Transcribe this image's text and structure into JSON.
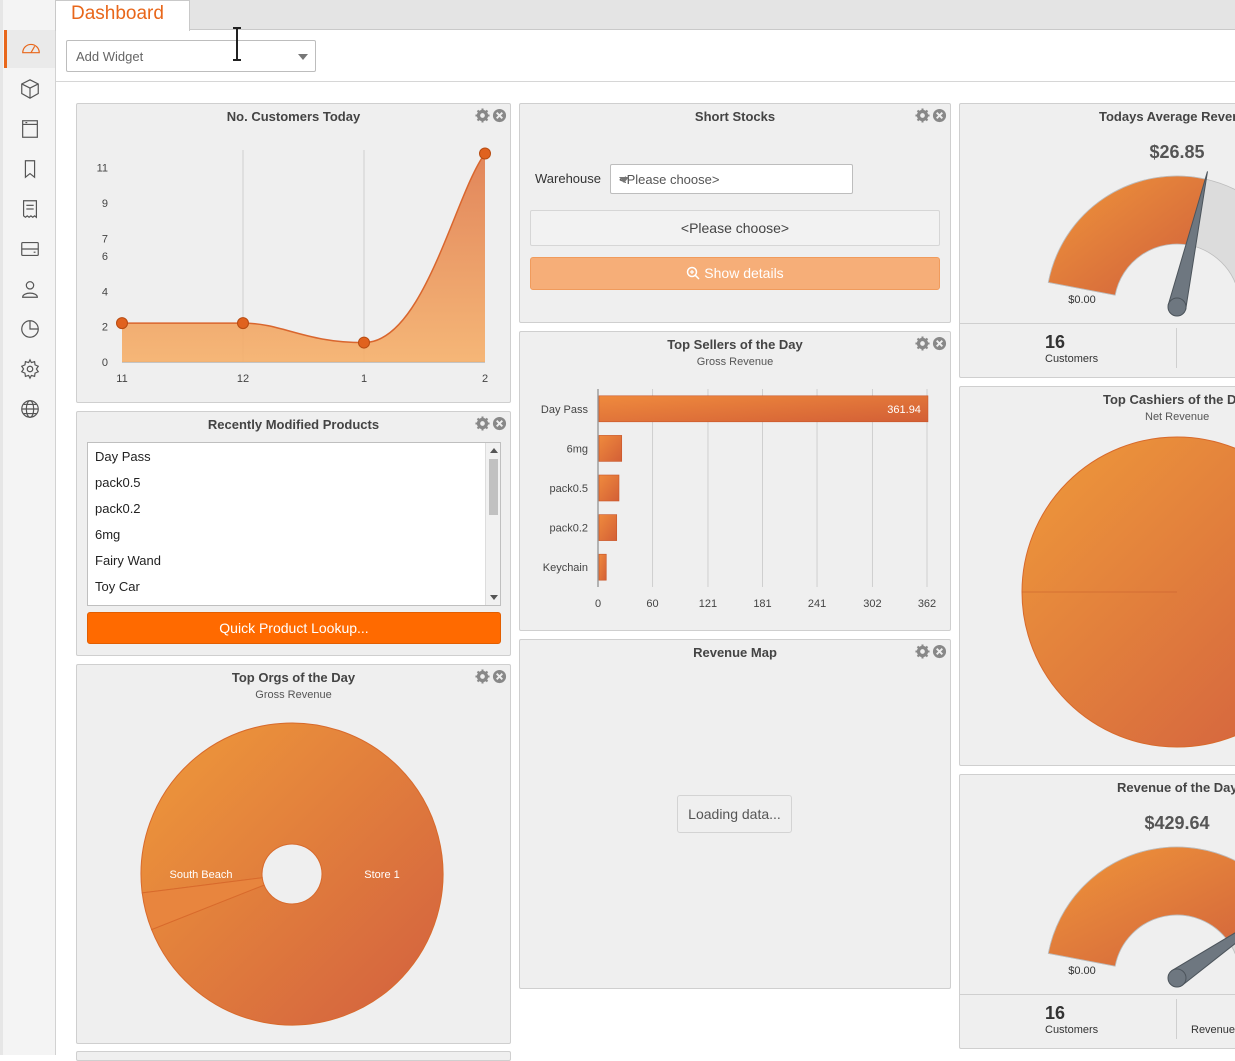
{
  "app": {
    "tab_title": "Dashboard",
    "add_widget_placeholder": "Add Widget"
  },
  "sidebar": {
    "items": [
      {
        "icon": "speedometer-icon",
        "active": true
      },
      {
        "icon": "box-icon"
      },
      {
        "icon": "register-icon"
      },
      {
        "icon": "bookmark-icon"
      },
      {
        "icon": "receipt-icon"
      },
      {
        "icon": "drawer-icon"
      },
      {
        "icon": "user-icon"
      },
      {
        "icon": "pie-chart-icon"
      },
      {
        "icon": "gear-icon"
      },
      {
        "icon": "globe-icon"
      }
    ]
  },
  "colors": {
    "accent": "#e8671b",
    "button": "#ff6a00",
    "button_disabled": "#f6ae78",
    "fill_light": "#f5a25a",
    "fill_dark": "#d2603d"
  },
  "widgets": {
    "customers_today": {
      "title": "No. Customers Today",
      "chart_data": {
        "type": "area",
        "x": [
          "11",
          "12",
          "1",
          "2"
        ],
        "y": [
          2.2,
          2.2,
          1.1,
          11.8
        ],
        "yticks": [
          "0",
          "2",
          "4",
          "6",
          "7",
          "9",
          "11"
        ],
        "title": "No. Customers Today"
      }
    },
    "recently_modified": {
      "title": "Recently Modified Products",
      "items": [
        "Day Pass",
        "pack0.5",
        "pack0.2",
        "6mg",
        "Fairy Wand",
        "Toy Car"
      ],
      "button": "Quick Product Lookup..."
    },
    "top_orgs": {
      "title": "Top Orgs of the Day",
      "subtitle": "Gross Revenue",
      "chart_data": {
        "type": "pie",
        "subtitle": "Gross Revenue",
        "slices": [
          {
            "label": "Store 1",
            "value": 96
          },
          {
            "label": "South Beach",
            "value": 4
          }
        ]
      }
    },
    "short_stocks": {
      "title": "Short Stocks",
      "warehouse_label": "Warehouse",
      "warehouse_value": "<Please choose>",
      "choose_text": "<Please choose>",
      "show_details": "Show details"
    },
    "top_sellers": {
      "title": "Top Sellers of the Day",
      "subtitle": "Gross Revenue",
      "chart_data": {
        "type": "bar",
        "orientation": "horizontal",
        "subtitle": "Gross Revenue",
        "categories": [
          "Day Pass",
          "6mg",
          "pack0.5",
          "pack0.2",
          "Keychain"
        ],
        "values": [
          361.94,
          25,
          22,
          19.5,
          8
        ],
        "value_labels": [
          "361.94",
          "",
          "",
          "",
          ""
        ],
        "xticks": [
          "0",
          "60",
          "121",
          "181",
          "241",
          "302",
          "362"
        ],
        "xlim": [
          0,
          362
        ]
      }
    },
    "revenue_map": {
      "title": "Revenue Map",
      "loading": "Loading data..."
    },
    "avg_revenue": {
      "title": "Todays Average Reven",
      "value": "$26.85",
      "min_label": "$0.00",
      "customers_count": "16",
      "customers_label": "Customers",
      "chart_data": {
        "type": "gauge",
        "value": 26.85,
        "fill_fraction": 0.58
      }
    },
    "top_cashiers": {
      "title": "Top Cashiers of the D",
      "subtitle": "Net Revenue",
      "chart_data": {
        "type": "pie",
        "subtitle": "Net Revenue",
        "slices": [
          {
            "label": "",
            "value": 100
          }
        ]
      }
    },
    "revenue_day": {
      "title": "Revenue of the Day",
      "value": "$429.64",
      "min_label": "$0.00",
      "customers_count": "16",
      "customers_label": "Customers",
      "revenue_label": "Revenue",
      "chart_data": {
        "type": "gauge",
        "value": 429.64,
        "fill_fraction": 0.85
      }
    }
  }
}
